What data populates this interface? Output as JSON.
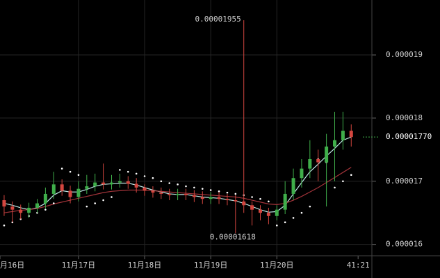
{
  "chart_data": {
    "type": "candlestick",
    "x": [
      -3,
      0,
      3,
      6,
      9,
      12,
      15,
      18,
      21,
      24,
      27,
      30,
      33,
      36,
      39,
      42,
      45,
      48,
      51,
      54,
      57,
      60,
      63,
      66,
      69,
      72,
      75,
      78,
      81,
      84,
      87,
      90,
      93,
      96,
      99,
      102,
      105,
      108,
      111,
      114,
      117,
      120,
      123
    ],
    "open": [
      1.67e-05,
      1.66e-05,
      1.655e-05,
      1.65e-05,
      1.658e-05,
      1.665e-05,
      1.68e-05,
      1.695e-05,
      1.685e-05,
      1.675e-05,
      1.688e-05,
      1.692e-05,
      1.698e-05,
      1.695e-05,
      1.698e-05,
      1.7e-05,
      1.696e-05,
      1.69e-05,
      1.685e-05,
      1.682e-05,
      1.68e-05,
      1.678e-05,
      1.68e-05,
      1.678e-05,
      1.675e-05,
      1.672e-05,
      1.675e-05,
      1.672e-05,
      1.67e-05,
      1.668e-05,
      1.662e-05,
      1.655e-05,
      1.65e-05,
      1.645e-05,
      1.655e-05,
      1.68e-05,
      1.705e-05,
      1.72e-05,
      1.735e-05,
      1.73e-05,
      1.755e-05,
      1.765e-05,
      1.78e-05
    ],
    "high": [
      1.678e-05,
      1.668e-05,
      1.663e-05,
      1.666e-05,
      1.672e-05,
      1.69e-05,
      1.715e-05,
      1.703e-05,
      1.693e-05,
      1.7e-05,
      1.71e-05,
      1.712e-05,
      1.728e-05,
      1.71e-05,
      1.712e-05,
      1.708e-05,
      1.705e-05,
      1.695e-05,
      1.692e-05,
      1.69e-05,
      1.688e-05,
      1.688e-05,
      1.688e-05,
      1.686e-05,
      1.684e-05,
      1.683e-05,
      1.683e-05,
      1.68e-05,
      1.678e-05,
      1.955e-05,
      1.668e-05,
      1.662e-05,
      1.658e-05,
      1.662e-05,
      1.7e-05,
      1.72e-05,
      1.735e-05,
      1.765e-05,
      1.75e-05,
      1.775e-05,
      1.81e-05,
      1.81e-05,
      1.79e-05
    ],
    "low": [
      1.645e-05,
      1.635e-05,
      1.64e-05,
      1.642e-05,
      1.65e-05,
      1.657e-05,
      1.672e-05,
      1.677e-05,
      1.665e-05,
      1.668e-05,
      1.68e-05,
      1.684e-05,
      1.687e-05,
      1.687e-05,
      1.69e-05,
      1.688e-05,
      1.682e-05,
      1.677e-05,
      1.674e-05,
      1.672e-05,
      1.67e-05,
      1.67e-05,
      1.67e-05,
      1.667e-05,
      1.664e-05,
      1.664e-05,
      1.664e-05,
      1.662e-05,
      1.618e-05,
      1.65e-05,
      1.63e-05,
      1.638e-05,
      1.632e-05,
      1.638e-05,
      1.648e-05,
      1.67e-05,
      1.69e-05,
      1.705e-05,
      1.7e-05,
      1.66e-05,
      1.7e-05,
      1.75e-05,
      1.755e-05
    ],
    "close": [
      1.66e-05,
      1.655e-05,
      1.65e-05,
      1.658e-05,
      1.665e-05,
      1.68e-05,
      1.695e-05,
      1.685e-05,
      1.675e-05,
      1.688e-05,
      1.692e-05,
      1.698e-05,
      1.695e-05,
      1.698e-05,
      1.7e-05,
      1.696e-05,
      1.69e-05,
      1.685e-05,
      1.682e-05,
      1.68e-05,
      1.678e-05,
      1.68e-05,
      1.678e-05,
      1.675e-05,
      1.672e-05,
      1.675e-05,
      1.672e-05,
      1.67e-05,
      1.668e-05,
      1.662e-05,
      1.655e-05,
      1.65e-05,
      1.645e-05,
      1.655e-05,
      1.68e-05,
      1.705e-05,
      1.72e-05,
      1.735e-05,
      1.73e-05,
      1.755e-05,
      1.765e-05,
      1.78e-05,
      1.77e-05
    ],
    "up_color": "#3fae4a",
    "down_color": "#d4463f",
    "lines": [
      {
        "color": "#bfe9e6",
        "values": [
          1.665e-05,
          1.662e-05,
          1.658e-05,
          1.655e-05,
          1.658e-05,
          1.665e-05,
          1.678e-05,
          1.685e-05,
          1.683e-05,
          1.683e-05,
          1.687e-05,
          1.692e-05,
          1.695e-05,
          1.696e-05,
          1.697e-05,
          1.697e-05,
          1.694e-05,
          1.69e-05,
          1.686e-05,
          1.683e-05,
          1.68e-05,
          1.679e-05,
          1.679e-05,
          1.677e-05,
          1.675e-05,
          1.674e-05,
          1.673e-05,
          1.671e-05,
          1.669e-05,
          1.665e-05,
          1.66e-05,
          1.655e-05,
          1.651e-05,
          1.652e-05,
          1.662e-05,
          1.68e-05,
          1.698e-05,
          1.715e-05,
          1.727e-05,
          1.74e-05,
          1.752e-05,
          1.765e-05,
          1.77e-05
        ]
      },
      {
        "color": "#a3343a",
        "values": [
          1.65e-05,
          1.652e-05,
          1.654e-05,
          1.655e-05,
          1.657e-05,
          1.66e-05,
          1.664e-05,
          1.667e-05,
          1.67e-05,
          1.673e-05,
          1.676e-05,
          1.679e-05,
          1.682e-05,
          1.684e-05,
          1.685e-05,
          1.686e-05,
          1.686e-05,
          1.686e-05,
          1.685e-05,
          1.684e-05,
          1.683e-05,
          1.682e-05,
          1.681e-05,
          1.68e-05,
          1.679e-05,
          1.678e-05,
          1.677e-05,
          1.676e-05,
          1.675e-05,
          1.673e-05,
          1.67e-05,
          1.667e-05,
          1.664e-05,
          1.663e-05,
          1.665e-05,
          1.67e-05,
          1.676e-05,
          1.683e-05,
          1.69e-05,
          1.698e-05,
          1.706e-05,
          1.714e-05,
          1.722e-05
        ]
      }
    ],
    "sar": {
      "color": "#ffffff",
      "values": [
        1.63e-05,
        1.635e-05,
        1.64e-05,
        1.645e-05,
        1.65e-05,
        1.655e-05,
        1.665e-05,
        1.72e-05,
        1.715e-05,
        1.71e-05,
        1.66e-05,
        1.665e-05,
        1.67e-05,
        1.675e-05,
        1.718e-05,
        1.715e-05,
        1.712e-05,
        1.708e-05,
        1.705e-05,
        1.7e-05,
        1.697e-05,
        1.695e-05,
        1.692e-05,
        1.69e-05,
        1.688e-05,
        1.686e-05,
        1.684e-05,
        1.682e-05,
        1.68e-05,
        1.678e-05,
        1.675e-05,
        1.672e-05,
        1.668e-05,
        1.63e-05,
        1.635e-05,
        1.642e-05,
        1.65e-05,
        1.66e-05,
        1.735e-05,
        1.73e-05,
        1.69e-05,
        1.7e-05,
        1.71e-05
      ]
    },
    "xlim": [
      -4.5,
      130.5
    ],
    "xticks": [
      {
        "value": -4.5,
        "label": "月16日"
      },
      {
        "value": 24,
        "label": "11月17日"
      },
      {
        "value": 48,
        "label": "11月18日"
      },
      {
        "value": 72,
        "label": "11月19日"
      },
      {
        "value": 96,
        "label": "11月20日"
      },
      {
        "value": 125.5,
        "label": "41:21"
      }
    ],
    "ylim": [
      1.582e-05,
      1.987e-05
    ],
    "yticks": [
      1.6e-05,
      1.7e-05,
      1.8e-05,
      1.9e-05
    ],
    "grid": true,
    "annotations": [
      {
        "x": 84,
        "value": 1.955e-05,
        "label": "0.00001955"
      },
      {
        "x": 81,
        "value": 1.618e-05,
        "label": "0.00001618"
      }
    ],
    "last_price": {
      "value": 1.77e-05,
      "label": "0.00001770",
      "color": "#3fae4a"
    }
  }
}
